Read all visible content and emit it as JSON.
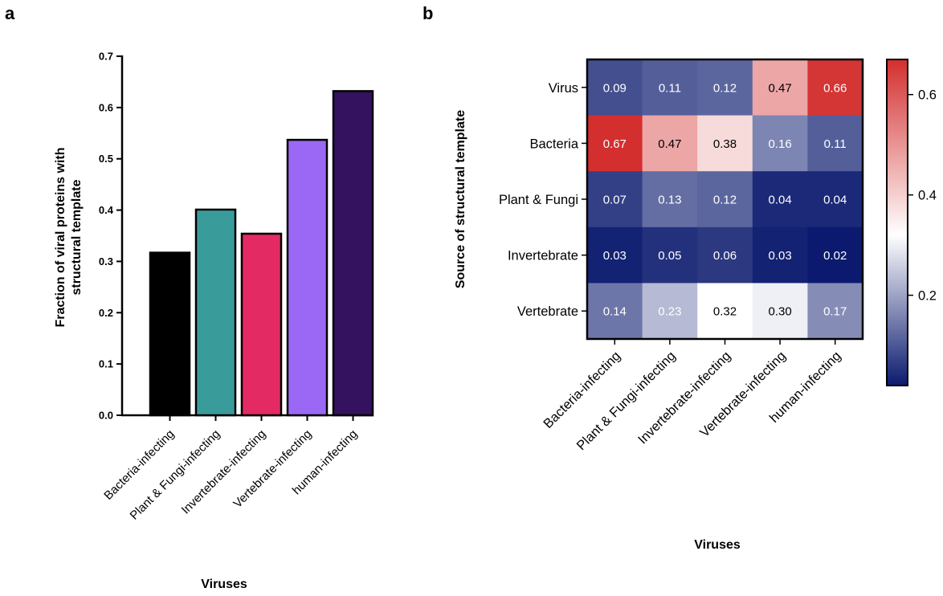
{
  "panels": {
    "a": "a",
    "b": "b"
  },
  "chart_data": [
    {
      "type": "bar",
      "categories": [
        "Bacteria-infecting",
        "Plant & Fungi-infecting",
        "Invertebrate-infecting",
        "Vertebrate-infecting",
        "human-infecting"
      ],
      "values": [
        0.317,
        0.401,
        0.354,
        0.537,
        0.632
      ],
      "colors": [
        "#000000",
        "#3a9c9a",
        "#e42a63",
        "#9a68f5",
        "#34125f"
      ],
      "title": "",
      "xlabel": "Viruses",
      "ylabel": "Fraction of viral proteins with structural template",
      "ylabel_lines": [
        "Fraction of viral proteins with",
        "structural template"
      ],
      "ylim": [
        0,
        0.7
      ],
      "yticks": [
        "0.0",
        "0.1",
        "0.2",
        "0.3",
        "0.4",
        "0.5",
        "0.6",
        "0.7"
      ],
      "grid": false
    },
    {
      "type": "heatmap",
      "x_categories": [
        "Bacteria-infecting",
        "Plant & Fungi-infecting",
        "Invertebrate-infecting",
        "Vertebrate-infecting",
        "human-infecting"
      ],
      "y_categories": [
        "Virus",
        "Bacteria",
        "Plant & Fungi",
        "Invertebrate",
        "Vertebrate"
      ],
      "values": [
        [
          0.09,
          0.11,
          0.12,
          0.47,
          0.66
        ],
        [
          0.67,
          0.47,
          0.38,
          0.16,
          0.11
        ],
        [
          0.07,
          0.13,
          0.12,
          0.04,
          0.04
        ],
        [
          0.03,
          0.05,
          0.06,
          0.03,
          0.02
        ],
        [
          0.14,
          0.23,
          0.32,
          0.3,
          0.17
        ]
      ],
      "labels": [
        [
          "0.09",
          "0.11",
          "0.12",
          "0.47",
          "0.66"
        ],
        [
          "0.67",
          "0.47",
          "0.38",
          "0.16",
          "0.11"
        ],
        [
          "0.07",
          "0.13",
          "0.12",
          "0.04",
          "0.04"
        ],
        [
          "0.03",
          "0.05",
          "0.06",
          "0.03",
          "0.02"
        ],
        [
          "0.14",
          "0.23",
          "0.32",
          "0.30",
          "0.17"
        ]
      ],
      "title": "",
      "xlabel": "Viruses",
      "ylabel": "Source of structural template",
      "colorbar": {
        "range": [
          0.02,
          0.67
        ],
        "ticks": [
          0.2,
          0.4,
          0.6
        ],
        "tick_labels": [
          "0.2",
          "0.4",
          "0.6"
        ],
        "low_color": "#0b1a6e",
        "mid_color": "#ffffff",
        "mid_value": 0.32,
        "high_color": "#d32f2f",
        "placement": "right"
      }
    }
  ]
}
